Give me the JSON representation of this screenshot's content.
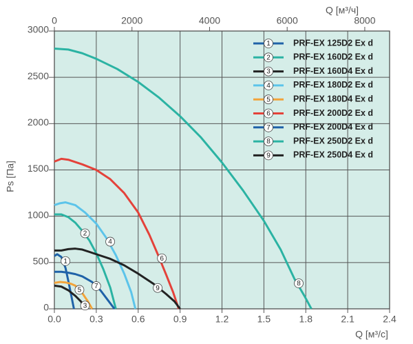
{
  "chart_data": {
    "type": "line",
    "x_label": "Q [м³/с]",
    "x2_label": "Q [м³/ч]",
    "y_label": "Ps [Па]",
    "xlim": [
      0,
      2.4
    ],
    "xticks": [
      {
        "value": 0,
        "label": "0.0"
      },
      0.3,
      0.6,
      0.9,
      1.2,
      1.5,
      1.8,
      2.1,
      2.4
    ],
    "x2lim": [
      0,
      8640
    ],
    "x2ticks": [
      0,
      2000,
      4000,
      6000,
      8000
    ],
    "ylim": [
      0,
      3000
    ],
    "yticks": [
      0,
      500,
      1000,
      1500,
      2000,
      2500,
      3000
    ],
    "grid": true,
    "legend": "upper right",
    "series": [
      {
        "id": "1",
        "name": "PRF-EX 125D2 Ex d",
        "color": "#1f62a8",
        "x": [
          0,
          0.02,
          0.05,
          0.08,
          0.1,
          0.12,
          0.14
        ],
        "values": [
          570,
          590,
          560,
          440,
          300,
          150,
          0
        ]
      },
      {
        "id": "2",
        "name": "PRF-EX 160D2 Ex d",
        "color": "#2bb3a3",
        "x": [
          0,
          0.05,
          0.1,
          0.15,
          0.19,
          0.25,
          0.3,
          0.35,
          0.4,
          0.44
        ],
        "values": [
          1020,
          1020,
          990,
          930,
          860,
          740,
          600,
          430,
          230,
          0
        ]
      },
      {
        "id": "3",
        "name": "PRF-EX 160D4 Ex d",
        "color": "#222222",
        "x": [
          0,
          0.05,
          0.1,
          0.15,
          0.19,
          0.22
        ],
        "values": [
          250,
          240,
          200,
          140,
          80,
          0
        ]
      },
      {
        "id": "4",
        "name": "PRF-EX 180D2 Ex d",
        "color": "#5cc4ea",
        "x": [
          0,
          0.04,
          0.08,
          0.15,
          0.22,
          0.3,
          0.37,
          0.44,
          0.5,
          0.55,
          0.58
        ],
        "values": [
          1120,
          1140,
          1150,
          1120,
          1040,
          920,
          770,
          580,
          380,
          180,
          0
        ]
      },
      {
        "id": "5",
        "name": "PRF-EX 180D4 Ex d",
        "color": "#f2a33a",
        "x": [
          0,
          0.04,
          0.08,
          0.12,
          0.15,
          0.2,
          0.24,
          0.27
        ],
        "values": [
          280,
          290,
          285,
          270,
          250,
          170,
          80,
          0
        ]
      },
      {
        "id": "6",
        "name": "PRF-EX 200D2 Ex d",
        "color": "#e4423a",
        "x": [
          0,
          0.05,
          0.1,
          0.2,
          0.3,
          0.4,
          0.5,
          0.6,
          0.68,
          0.74,
          0.8,
          0.85,
          0.89
        ],
        "values": [
          1590,
          1620,
          1610,
          1560,
          1500,
          1400,
          1250,
          1040,
          800,
          590,
          370,
          180,
          0
        ]
      },
      {
        "id": "7",
        "name": "PRF-EX 200D4 Ex d",
        "color": "#1f62a8",
        "x": [
          0,
          0.05,
          0.1,
          0.15,
          0.2,
          0.27,
          0.33,
          0.38,
          0.43
        ],
        "values": [
          400,
          400,
          390,
          375,
          350,
          290,
          200,
          100,
          0
        ]
      },
      {
        "id": "8",
        "name": "PRF-EX 250D2 Ex d",
        "color": "#2bb3a3",
        "x": [
          0,
          0.1,
          0.2,
          0.3,
          0.45,
          0.6,
          0.75,
          0.9,
          1.05,
          1.2,
          1.35,
          1.5,
          1.62,
          1.72,
          1.79,
          1.84
        ],
        "values": [
          2810,
          2800,
          2760,
          2700,
          2590,
          2450,
          2280,
          2080,
          1850,
          1580,
          1280,
          950,
          640,
          320,
          140,
          0
        ]
      },
      {
        "id": "9",
        "name": "PRF-EX 250D4 Ex d",
        "color": "#222222",
        "x": [
          0,
          0.05,
          0.1,
          0.15,
          0.2,
          0.3,
          0.4,
          0.5,
          0.6,
          0.71,
          0.8,
          0.86,
          0.9
        ],
        "values": [
          630,
          630,
          645,
          650,
          640,
          590,
          540,
          470,
          380,
          270,
          160,
          80,
          0
        ]
      }
    ]
  }
}
